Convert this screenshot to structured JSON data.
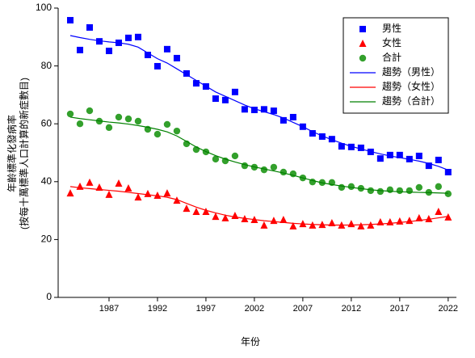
{
  "chart_data": {
    "type": "scatter",
    "ylabel": [
      "年齡標準化發病率",
      "(按每十萬標準人口計算的新症數目)"
    ],
    "xlabel": "年份",
    "x": [
      1983,
      1984,
      1985,
      1986,
      1987,
      1988,
      1989,
      1990,
      1991,
      1992,
      1993,
      1994,
      1995,
      1996,
      1997,
      1998,
      1999,
      2000,
      2001,
      2002,
      2003,
      2004,
      2005,
      2006,
      2007,
      2008,
      2009,
      2010,
      2011,
      2012,
      2013,
      2014,
      2015,
      2016,
      2017,
      2018,
      2019,
      2020,
      2021,
      2022
    ],
    "xlim": [
      1981.75,
      2022.85
    ],
    "xticks": [
      1987,
      1992,
      1997,
      2002,
      2007,
      2012,
      2017,
      2022
    ],
    "ylim": [
      0,
      100
    ],
    "yticks": [
      0,
      20,
      40,
      60,
      80,
      100
    ],
    "legend": "upper right",
    "series": [
      {
        "name": "男性",
        "color": "#0000ff",
        "marker": "square",
        "values": [
          95.8,
          85.5,
          93.3,
          88.5,
          85.2,
          88,
          89.7,
          90,
          83.8,
          79.9,
          85.8,
          82.7,
          77.4,
          74,
          72.9,
          68.7,
          68.2,
          71,
          65,
          64.8,
          65,
          64.5,
          61.2,
          62.3,
          59,
          56.7,
          55.6,
          54.7,
          52.2,
          52,
          51.7,
          50.3,
          48,
          49.2,
          49.2,
          47.8,
          48.9,
          45.5,
          47.5,
          43.3
        ]
      },
      {
        "name": "女性",
        "color": "#ff0000",
        "marker": "triangle",
        "values": [
          36,
          38.3,
          39.7,
          38,
          35.5,
          39.4,
          37.7,
          34.6,
          35.8,
          35.2,
          36,
          33.5,
          30.7,
          29.6,
          29.6,
          27.9,
          27.4,
          28.2,
          27.1,
          26.8,
          24.9,
          26.5,
          26.8,
          24.6,
          25.4,
          24.9,
          25.1,
          25.7,
          24.9,
          25.4,
          24.6,
          24.9,
          26,
          26,
          26.3,
          26.5,
          27.4,
          27.1,
          29.6,
          27.7
        ]
      },
      {
        "name": "合計",
        "color": "#33a02c",
        "marker": "circle",
        "values": [
          63.4,
          60,
          64.5,
          60.9,
          58.7,
          62.3,
          61.7,
          60.9,
          58.1,
          56.4,
          59.8,
          57.5,
          53.1,
          51.1,
          50.3,
          47.8,
          47.2,
          48.9,
          45.5,
          45,
          44.1,
          45,
          43.3,
          42.7,
          41.3,
          39.9,
          39.7,
          39.7,
          38,
          38.3,
          37.7,
          36.9,
          36.6,
          37.2,
          36.9,
          36.9,
          38,
          36.3,
          38.3,
          35.8
        ]
      },
      {
        "name": "趨勢（男性）",
        "color": "#0000ff",
        "marker": "line",
        "values": [
          90.5,
          89.8,
          89.2,
          88.7,
          88.3,
          88,
          87.5,
          86.5,
          84.5,
          82.5,
          81,
          79,
          77,
          75,
          73,
          71,
          69.5,
          68,
          66.5,
          65.2,
          64.2,
          63.2,
          62,
          60.5,
          59,
          57.3,
          55.8,
          54.5,
          53.3,
          52.2,
          51.3,
          50.4,
          49.6,
          48.9,
          48.3,
          47.7,
          47.1,
          46.3,
          45.3,
          44
        ]
      },
      {
        "name": "趨勢（女性）",
        "color": "#ff0000",
        "marker": "line",
        "values": [
          38.3,
          37.9,
          37.6,
          37.3,
          37,
          36.7,
          36.3,
          35.9,
          35.5,
          35.1,
          34.6,
          33.8,
          32.5,
          31.2,
          30.1,
          29.2,
          28.4,
          27.8,
          27.3,
          26.9,
          26.5,
          26.2,
          25.9,
          25.6,
          25.4,
          25.2,
          25.1,
          25,
          25,
          25,
          25.1,
          25.2,
          25.4,
          25.6,
          25.9,
          26.2,
          26.6,
          27,
          27.5,
          28
        ]
      },
      {
        "name": "趨勢（合計）",
        "color": "#008000",
        "marker": "line",
        "values": [
          62.3,
          61.8,
          61.4,
          61,
          60.6,
          60.3,
          59.9,
          59.4,
          58.8,
          58.1,
          57.2,
          55.8,
          53.9,
          52,
          50.4,
          49,
          47.8,
          46.8,
          45.9,
          45.1,
          44.4,
          43.7,
          43,
          42.2,
          41.3,
          40.4,
          39.6,
          39,
          38.5,
          38,
          37.6,
          37.2,
          36.9,
          36.7,
          36.5,
          36.4,
          36.3,
          36.2,
          36.1,
          36
        ]
      }
    ]
  }
}
